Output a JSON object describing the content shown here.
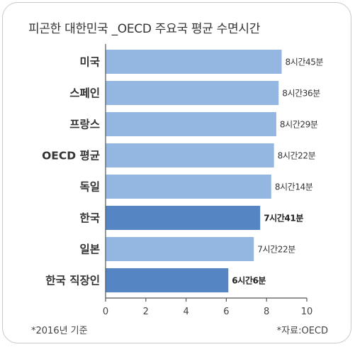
{
  "header": {
    "title": "피곤한 대한민국 _OECD 주요국 평균 수면시간"
  },
  "footer": {
    "left_note": "*2016년 기준",
    "right_note": "*자료:OECD"
  },
  "chart_data": {
    "type": "bar",
    "orientation": "horizontal",
    "title": "피곤한 대한민국 _OECD 주요국 평균 수면시간",
    "categories": [
      "미국",
      "스페인",
      "프랑스",
      "OECD 평균",
      "독일",
      "한국",
      "일본",
      "한국 직장인"
    ],
    "values": [
      8.75,
      8.6,
      8.483,
      8.367,
      8.233,
      7.683,
      7.367,
      6.1
    ],
    "value_labels": [
      "8시간45분",
      "8시간36분",
      "8시간29분",
      "8시간22분",
      "8시간14분",
      "7시간41분",
      "7시간22분",
      "6시간6분"
    ],
    "highlighted": [
      false,
      false,
      false,
      false,
      false,
      true,
      false,
      true
    ],
    "xlim": [
      0,
      10
    ],
    "xticks": [
      0,
      2,
      4,
      6,
      8,
      10
    ],
    "colors": {
      "bar": "#94b7e1",
      "highlight": "#5586c3",
      "axis": "#555555"
    },
    "grid": false,
    "legend": "none"
  }
}
